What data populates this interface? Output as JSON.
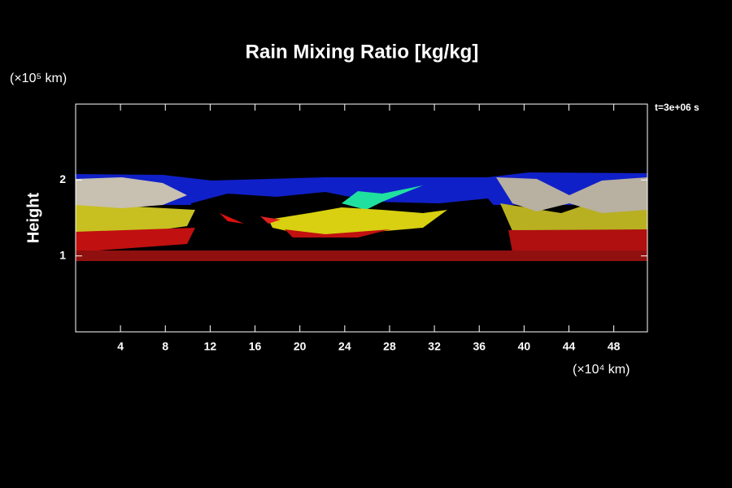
{
  "chart_data": {
    "type": "field",
    "title": "Rain Mixing Ratio [kg/kg]",
    "ylabel": "Height",
    "yunit": "(×10⁵ km)",
    "xunit": "(×10⁴ km)",
    "annotation": "t=3e+06 s",
    "xlim": [
      0,
      51
    ],
    "xticks": [
      4,
      8,
      12,
      16,
      20,
      24,
      28,
      32,
      36,
      40,
      44,
      48
    ],
    "ylim": [
      0,
      3
    ],
    "yticks": [
      1,
      2
    ]
  }
}
